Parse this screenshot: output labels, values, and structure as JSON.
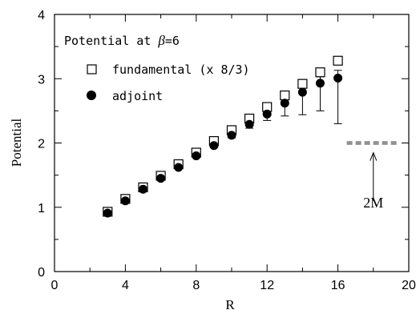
{
  "chart_data": {
    "type": "scatter",
    "title": "",
    "xlabel": "R",
    "ylabel": "Potential",
    "xlim": [
      0,
      20
    ],
    "ylim": [
      0,
      4
    ],
    "x_ticks": [
      0,
      4,
      8,
      12,
      16,
      20
    ],
    "y_ticks": [
      0,
      1,
      2,
      3,
      4
    ],
    "x_minor_step": 2,
    "y_minor_step": 0.5,
    "grid": false,
    "legend": {
      "title_prefix": "Potential at ",
      "beta_symbol": "β",
      "title_suffix": "=6",
      "placement": "top-left"
    },
    "series": [
      {
        "name": "fundamental (x 8/3)",
        "marker": "open-square",
        "x": [
          3,
          4,
          5,
          6,
          7,
          8,
          9,
          10,
          11,
          12,
          13,
          14,
          15,
          16
        ],
        "y": [
          0.93,
          1.13,
          1.31,
          1.49,
          1.67,
          1.85,
          2.03,
          2.2,
          2.38,
          2.56,
          2.74,
          2.92,
          3.1,
          3.28
        ]
      },
      {
        "name": "adjoint",
        "marker": "filled-circle",
        "x": [
          3,
          4,
          5,
          6,
          7,
          8,
          9,
          10,
          11,
          12,
          13,
          14,
          15,
          16
        ],
        "y": [
          0.91,
          1.1,
          1.28,
          1.45,
          1.62,
          1.8,
          1.96,
          2.12,
          2.29,
          2.45,
          2.62,
          2.79,
          2.93,
          3.01
        ],
        "err_low": [
          0.02,
          0.02,
          0.02,
          0.02,
          0.02,
          0.03,
          0.03,
          0.04,
          0.06,
          0.1,
          0.2,
          0.35,
          0.43,
          0.71
        ],
        "err_high": [
          0.02,
          0.02,
          0.02,
          0.02,
          0.02,
          0.03,
          0.03,
          0.04,
          0.05,
          0.06,
          0.07,
          0.1,
          0.1,
          0.12
        ]
      }
    ],
    "annotations": [
      {
        "type": "dashed-lines",
        "x_range": [
          16.5,
          19.4
        ],
        "y_values": [
          1.985,
          2.015
        ]
      },
      {
        "type": "arrow",
        "x": 18,
        "from_y": 1.1,
        "to_y": 1.85
      },
      {
        "type": "text",
        "text": "2M",
        "x": 18,
        "y": 1.0
      }
    ]
  }
}
